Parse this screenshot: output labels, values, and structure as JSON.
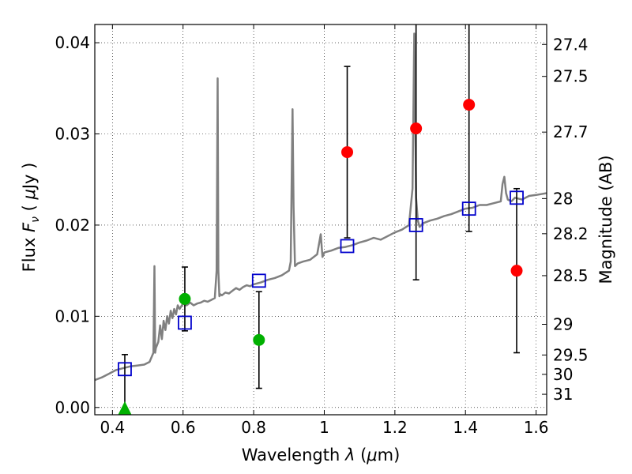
{
  "chart_data": {
    "type": "scatter",
    "xlabel": "Wavelength  λ (μm)",
    "ylabel": "Flux  F_ν  ( μJy )",
    "ylabel_parts": {
      "a": "Flux  ",
      "b": "F",
      "c": "ν",
      "d": "  ( ",
      "e": "μ",
      "f": "Jy )"
    },
    "xlabel_parts": {
      "a": "Wavelength  ",
      "b": "λ",
      "c": " (",
      "d": "μ",
      "e": "m)"
    },
    "y2label": "Magnitude (AB)",
    "xlim": [
      0.35,
      1.63
    ],
    "ylim": [
      -0.0008,
      0.042
    ],
    "grid": true,
    "x_ticks": [
      0.4,
      0.6,
      0.8,
      1.0,
      1.2,
      1.4,
      1.6
    ],
    "x_tick_labels": [
      "0.4",
      "0.6",
      "0.8",
      "1",
      "1.2",
      "1.4",
      "1.6"
    ],
    "y_ticks": [
      0.0,
      0.01,
      0.02,
      0.03,
      0.04
    ],
    "y_tick_labels": [
      "0.00",
      "0.01",
      "0.02",
      "0.03",
      "0.04"
    ],
    "y2_tick_labels": [
      "27.4",
      "27.5",
      "27.7",
      "28",
      "28.2",
      "28.5",
      "29",
      "29.5",
      "30",
      "31"
    ],
    "colors": {
      "model": "#808080",
      "model_photometry": "#0000cc",
      "detections": "#ff0000",
      "low_sn": "#00b000",
      "errorbar": "#000000"
    },
    "series": [
      {
        "type": "scatter",
        "marker": "circle",
        "color": "#ff0000",
        "x": [
          1.065,
          1.26,
          1.41,
          1.545
        ],
        "y": [
          0.028,
          0.0306,
          0.0332,
          0.015
        ],
        "yerr": [
          0.0094,
          0.0166,
          0.0139,
          0.009
        ]
      },
      {
        "type": "scatter",
        "marker": "circle",
        "color": "#00b000",
        "x": [
          0.605,
          0.815
        ],
        "y": [
          0.0119,
          0.0074
        ],
        "yerr": [
          0.0035,
          0.0053
        ]
      },
      {
        "type": "scatter",
        "marker": "triangle",
        "color": "#00b000",
        "x": [
          0.435
        ],
        "y": [
          -0.0001
        ],
        "yerr": [
          0.0059
        ]
      },
      {
        "type": "scatter",
        "marker": "open-square",
        "color": "#0000cc",
        "x": [
          0.435,
          0.605,
          0.815,
          1.065,
          1.26,
          1.41,
          1.545
        ],
        "y": [
          0.0042,
          0.0093,
          0.0139,
          0.0177,
          0.02,
          0.0218,
          0.023
        ]
      },
      {
        "type": "line",
        "color": "#808080",
        "x": [
          0.35,
          0.37,
          0.39,
          0.41,
          0.43,
          0.45,
          0.47,
          0.49,
          0.505,
          0.516,
          0.519,
          0.521,
          0.523,
          0.53,
          0.535,
          0.54,
          0.545,
          0.55,
          0.555,
          0.56,
          0.565,
          0.57,
          0.575,
          0.58,
          0.585,
          0.59,
          0.6,
          0.61,
          0.62,
          0.63,
          0.64,
          0.65,
          0.66,
          0.67,
          0.68,
          0.69,
          0.695,
          0.698,
          0.7,
          0.703,
          0.706,
          0.71,
          0.72,
          0.73,
          0.74,
          0.75,
          0.76,
          0.77,
          0.78,
          0.79,
          0.8,
          0.82,
          0.84,
          0.86,
          0.88,
          0.9,
          0.905,
          0.91,
          0.913,
          0.917,
          0.925,
          0.94,
          0.96,
          0.98,
          0.99,
          0.995,
          1.0,
          1.02,
          1.04,
          1.06,
          1.08,
          1.1,
          1.12,
          1.14,
          1.16,
          1.18,
          1.2,
          1.22,
          1.24,
          1.25,
          1.255,
          1.26,
          1.265,
          1.27,
          1.28,
          1.3,
          1.32,
          1.34,
          1.36,
          1.38,
          1.4,
          1.42,
          1.44,
          1.46,
          1.48,
          1.5,
          1.505,
          1.51,
          1.515,
          1.52,
          1.53,
          1.54,
          1.56,
          1.58,
          1.6,
          1.63
        ],
        "y": [
          0.003,
          0.0033,
          0.0037,
          0.0041,
          0.0043,
          0.0045,
          0.0046,
          0.0047,
          0.005,
          0.006,
          0.0155,
          0.006,
          0.0065,
          0.0072,
          0.009,
          0.0075,
          0.0095,
          0.0085,
          0.01,
          0.0092,
          0.0106,
          0.0098,
          0.0108,
          0.0102,
          0.0112,
          0.0108,
          0.0114,
          0.0112,
          0.0115,
          0.0112,
          0.0114,
          0.0115,
          0.0117,
          0.0116,
          0.0118,
          0.012,
          0.015,
          0.0361,
          0.015,
          0.0122,
          0.0124,
          0.0123,
          0.0126,
          0.0125,
          0.0128,
          0.0131,
          0.0129,
          0.0132,
          0.0134,
          0.0133,
          0.0135,
          0.0137,
          0.014,
          0.0142,
          0.0145,
          0.015,
          0.016,
          0.0327,
          0.022,
          0.0155,
          0.0158,
          0.016,
          0.0162,
          0.0168,
          0.019,
          0.0165,
          0.017,
          0.0172,
          0.0175,
          0.0176,
          0.0178,
          0.0181,
          0.0183,
          0.0186,
          0.0184,
          0.0188,
          0.0192,
          0.0195,
          0.02,
          0.024,
          0.041,
          0.023,
          0.0205,
          0.0198,
          0.0202,
          0.0205,
          0.0207,
          0.021,
          0.0212,
          0.0215,
          0.0218,
          0.0219,
          0.0222,
          0.0222,
          0.0224,
          0.0226,
          0.0245,
          0.0253,
          0.0235,
          0.0228,
          0.0226,
          0.023,
          0.0228,
          0.0232,
          0.0233,
          0.0235
        ]
      }
    ]
  }
}
